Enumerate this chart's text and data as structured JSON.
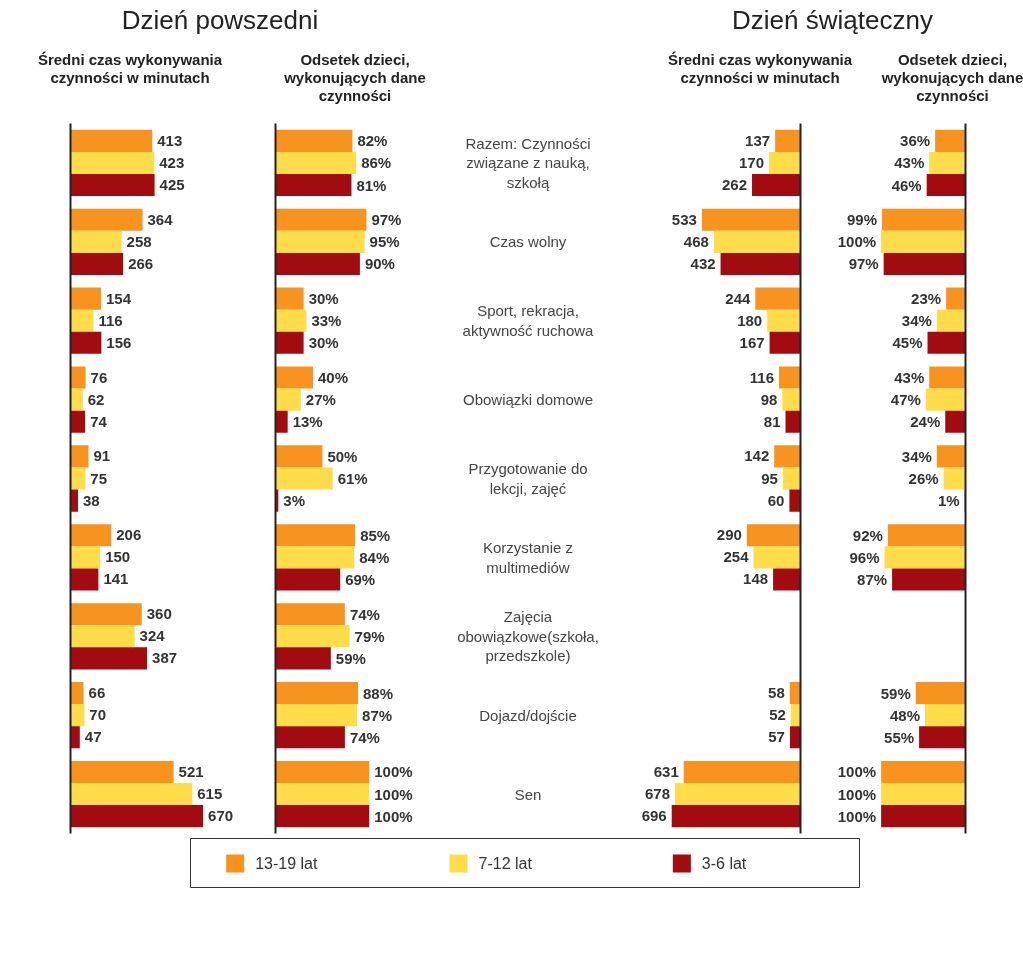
{
  "chart_data": [
    {
      "type": "bar",
      "orientation": "horizontal",
      "title": "Średni czas wykonywania czynności w minutach",
      "annotations": [
        "Dzień powszedni"
      ],
      "legend": "bottom",
      "tick_labels": false,
      "categories": [
        "Razem: Czynności związane z nauką, szkołą",
        "Czas wolny",
        "Sport, rekracja, aktywność ruchowa",
        "Obowiązki domowe",
        "Przygotowanie do lekcji, zajęć",
        "Korzystanie z multimediów",
        "Zajęcia obowiązkowe(szkoła, przedszkole)",
        "Dojazd/dojście",
        "Sen"
      ],
      "series": [
        {
          "name": "13-19 lat",
          "color": "#f7931e",
          "values": [
            413,
            364,
            154,
            76,
            91,
            206,
            360,
            66,
            521
          ],
          "value_labels": [
            "413",
            "364",
            "154",
            "76",
            "91",
            "206",
            "360",
            "66",
            "521"
          ]
        },
        {
          "name": "7-12 lat",
          "color": "#fedc4a",
          "values": [
            423,
            258,
            116,
            62,
            75,
            150,
            324,
            70,
            615
          ],
          "value_labels": [
            "423",
            "258",
            "116",
            "62",
            "75",
            "150",
            "324",
            "70",
            "615"
          ]
        },
        {
          "name": "3-6 lat",
          "color": "#a20b10",
          "values": [
            425,
            266,
            156,
            74,
            38,
            141,
            387,
            47,
            670
          ],
          "value_labels": [
            "425",
            "266",
            "156",
            "74",
            "38",
            "141",
            "387",
            "47",
            "670"
          ]
        }
      ]
    },
    {
      "type": "bar",
      "orientation": "horizontal",
      "title": "Odsetek dzieci, wykonujących dane czynności",
      "tick_labels": false,
      "categories": [
        "Razem: Czynności związane z nauką, szkołą",
        "Czas wolny",
        "Sport, rekracja, aktywność ruchowa",
        "Obowiązki domowe",
        "Przygotowanie do lekcji, zajęć",
        "Korzystanie z multimediów",
        "Zajęcia obowiązkowe(szkoła, przedszkole)",
        "Dojazd/dojście",
        "Sen"
      ],
      "series": [
        {
          "color": "#f7931e",
          "values": [
            82,
            97,
            30,
            40,
            50,
            85,
            74,
            88,
            100
          ],
          "value_labels": [
            "82%",
            "97%",
            "30%",
            "40%",
            "50%",
            "85%",
            "74%",
            "88%",
            "100%"
          ]
        },
        {
          "color": "#fedc4a",
          "values": [
            86,
            95,
            33,
            27,
            61,
            84,
            79,
            87,
            100
          ],
          "value_labels": [
            "86%",
            "95%",
            "33%",
            "27%",
            "61%",
            "84%",
            "79%",
            "87%",
            "100%"
          ]
        },
        {
          "color": "#a20b10",
          "values": [
            81,
            90,
            30,
            13,
            3,
            69,
            59,
            74,
            100
          ],
          "value_labels": [
            "81%",
            "90%",
            "30%",
            "13%",
            "3%",
            "69%",
            "59%",
            "74%",
            "100%"
          ]
        }
      ]
    },
    {
      "type": "bar",
      "orientation": "horizontal",
      "title": "Średni czas wykonywania czynności w minutach",
      "annotations": [
        "Dzień świąteczny"
      ],
      "tick_labels": "y",
      "categories": [
        "Razem: Czynności związane z nauką, szkołą",
        "Czas wolny",
        "Sport, rekracja, aktywność ruchowa",
        "Obowiązki domowe",
        "Przygotowanie do lekcji, zajęć",
        "Korzystanie z multimediów",
        "Zajęcia obowiązkowe(szkoła, przedszkole)",
        "Dojazd/dojście",
        "Sen"
      ],
      "series": [
        {
          "color": "#f7931e",
          "values": [
            137,
            533,
            244,
            116,
            142,
            290,
            null,
            58,
            631
          ],
          "value_labels": [
            "137",
            "533",
            "244",
            "116",
            "142",
            "290",
            null,
            "58",
            "631"
          ]
        },
        {
          "color": "#fedc4a",
          "values": [
            170,
            468,
            180,
            98,
            95,
            254,
            null,
            52,
            678
          ],
          "value_labels": [
            "170",
            "468",
            "180",
            "98",
            "95",
            "254",
            null,
            "52",
            "678"
          ]
        },
        {
          "color": "#a20b10",
          "values": [
            262,
            432,
            167,
            81,
            60,
            148,
            null,
            57,
            696
          ],
          "value_labels": [
            "262",
            "432",
            "167",
            "81",
            "60",
            "148",
            null,
            "57",
            "696"
          ]
        }
      ]
    },
    {
      "type": "bar",
      "orientation": "horizontal",
      "title": "Odsetek dzieci, wykonujących dane czynności",
      "tick_labels": false,
      "categories": [
        "Razem: Czynności związane z nauką, szkołą",
        "Czas wolny",
        "Sport, rekracja, aktywność ruchowa",
        "Obowiązki domowe",
        "Przygotowanie do lekcji, zajęć",
        "Korzystanie z multimediów",
        "Zajęcia obowiązkowe(szkoła, przedszkole)",
        "Dojazd/dojście",
        "Sen"
      ],
      "series": [
        {
          "color": "#f7931e",
          "values": [
            36,
            99,
            23,
            43,
            34,
            92,
            null,
            59,
            100
          ],
          "value_labels": [
            "36%",
            "99%",
            "23%",
            "43%",
            "34%",
            "92%",
            null,
            "59%",
            "100%"
          ]
        },
        {
          "color": "#fedc4a",
          "values": [
            43,
            100,
            34,
            47,
            26,
            96,
            null,
            48,
            100
          ],
          "value_labels": [
            "43%",
            "100%",
            "34%",
            "47%",
            "26%",
            "96%",
            null,
            "48%",
            "100%"
          ]
        },
        {
          "color": "#a20b10",
          "values": [
            46,
            97,
            45,
            24,
            1,
            87,
            null,
            55,
            100
          ],
          "value_labels": [
            "46%",
            "97%",
            "45%",
            "24%",
            "1%",
            "87%",
            null,
            "55%",
            "100%"
          ]
        }
      ]
    }
  ]
}
